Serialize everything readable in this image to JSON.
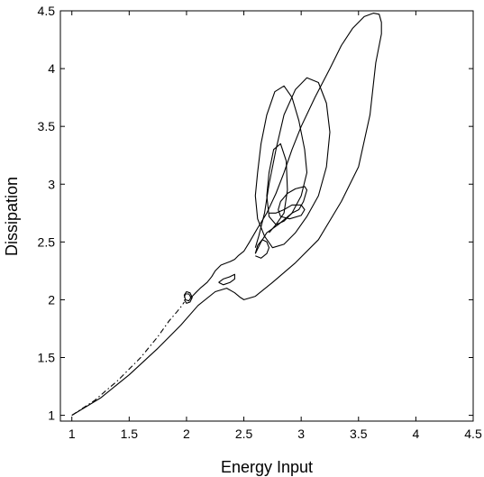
{
  "chart_data": {
    "type": "line",
    "title": "",
    "xlabel": "Energy Input",
    "ylabel": "Dissipation",
    "xlim": [
      0.9,
      4.5
    ],
    "ylim": [
      0.95,
      4.5
    ],
    "x_ticks": [
      1,
      1.5,
      2,
      2.5,
      3,
      3.5,
      4,
      4.5
    ],
    "x_tick_labels": [
      "1",
      "1.5",
      "2",
      "2.5",
      "3",
      "3.5",
      "4",
      "4.5"
    ],
    "y_ticks": [
      1,
      1.5,
      2,
      2.5,
      3,
      3.5,
      4,
      4.5
    ],
    "y_tick_labels": [
      "1",
      "1.5",
      "2",
      "2.5",
      "3",
      "3.5",
      "4",
      "4.5"
    ],
    "grid": false,
    "legend": "none",
    "series": [
      {
        "style": "solid",
        "x": [
          1.0,
          1.25,
          1.5,
          1.75,
          1.95,
          2.1,
          2.25,
          2.35,
          2.42,
          2.47,
          2.5,
          2.6,
          2.75,
          2.95,
          3.15,
          3.35,
          3.5,
          3.6,
          3.65,
          3.7,
          3.7,
          3.68,
          3.63,
          3.55,
          3.45,
          3.35,
          3.25,
          3.12,
          3.0,
          2.92,
          2.85,
          2.78,
          2.7,
          2.62,
          2.55,
          2.5,
          2.45,
          2.42,
          2.38,
          2.3,
          2.25,
          2.22,
          2.18,
          2.12,
          2.08,
          2.05,
          2.03
        ],
        "y": [
          1.0,
          1.15,
          1.35,
          1.58,
          1.78,
          1.95,
          2.07,
          2.1,
          2.06,
          2.02,
          2.0,
          2.03,
          2.15,
          2.32,
          2.52,
          2.85,
          3.15,
          3.6,
          4.05,
          4.3,
          4.4,
          4.47,
          4.48,
          4.45,
          4.35,
          4.2,
          4.0,
          3.75,
          3.5,
          3.3,
          3.1,
          2.92,
          2.75,
          2.62,
          2.5,
          2.42,
          2.38,
          2.35,
          2.33,
          2.3,
          2.25,
          2.2,
          2.15,
          2.1,
          2.06,
          2.03,
          2.02
        ]
      },
      {
        "style": "solid",
        "x": [
          2.6,
          2.65,
          2.7,
          2.8,
          2.92,
          3.0,
          3.05,
          3.03,
          2.98,
          2.92,
          2.85,
          2.77,
          2.7,
          2.65,
          2.62,
          2.6,
          2.62,
          2.68,
          2.75,
          2.85,
          2.95,
          3.05,
          3.15,
          3.22,
          3.25,
          3.22,
          3.15,
          3.05,
          2.95,
          2.85,
          2.78,
          2.72,
          2.68,
          2.63,
          2.6
        ],
        "y": [
          2.4,
          2.5,
          2.58,
          2.65,
          2.75,
          2.9,
          3.1,
          3.3,
          3.55,
          3.75,
          3.85,
          3.8,
          3.6,
          3.35,
          3.1,
          2.9,
          2.7,
          2.55,
          2.45,
          2.48,
          2.58,
          2.72,
          2.9,
          3.15,
          3.45,
          3.7,
          3.88,
          3.92,
          3.82,
          3.6,
          3.3,
          3.0,
          2.75,
          2.55,
          2.45
        ]
      },
      {
        "style": "solid",
        "x": [
          2.72,
          2.78,
          2.85,
          2.88,
          2.87,
          2.82,
          2.76,
          2.72,
          2.7,
          2.72,
          2.78,
          2.85,
          2.92,
          2.98,
          3.02,
          3.05,
          3.03,
          2.95,
          2.88,
          2.82,
          2.8,
          2.82,
          2.9,
          3.0,
          3.03,
          3.0,
          2.92,
          2.85,
          2.78,
          2.72
        ],
        "y": [
          2.58,
          2.65,
          2.75,
          2.95,
          3.2,
          3.35,
          3.3,
          3.1,
          2.9,
          2.72,
          2.65,
          2.68,
          2.75,
          2.78,
          2.85,
          2.95,
          2.98,
          2.96,
          2.92,
          2.85,
          2.78,
          2.72,
          2.7,
          2.73,
          2.78,
          2.82,
          2.82,
          2.78,
          2.75,
          2.75
        ]
      },
      {
        "style": "solid",
        "x": [
          2.28,
          2.32,
          2.38,
          2.42,
          2.42,
          2.38,
          2.32,
          2.28
        ],
        "y": [
          2.15,
          2.18,
          2.2,
          2.22,
          2.18,
          2.15,
          2.13,
          2.15
        ]
      },
      {
        "style": "solid",
        "x": [
          1.98,
          2.0,
          2.03,
          2.05,
          2.03,
          2.0,
          1.98,
          1.99,
          2.02,
          2.04,
          2.02,
          1.99,
          1.98
        ],
        "y": [
          2.0,
          1.97,
          1.98,
          2.02,
          2.06,
          2.07,
          2.04,
          2.0,
          1.99,
          2.02,
          2.05,
          2.05,
          2.02
        ]
      },
      {
        "style": "dashdot",
        "x": [
          1.0,
          1.2,
          1.4,
          1.6,
          1.75,
          1.85,
          1.92,
          1.96,
          1.98
        ],
        "y": [
          1.0,
          1.13,
          1.3,
          1.5,
          1.68,
          1.82,
          1.9,
          1.95,
          1.98
        ]
      },
      {
        "style": "solid",
        "x": [
          2.6,
          2.65,
          2.7,
          2.72,
          2.7,
          2.66,
          2.62,
          2.6
        ],
        "y": [
          2.38,
          2.36,
          2.4,
          2.45,
          2.5,
          2.52,
          2.47,
          2.4
        ]
      }
    ]
  }
}
